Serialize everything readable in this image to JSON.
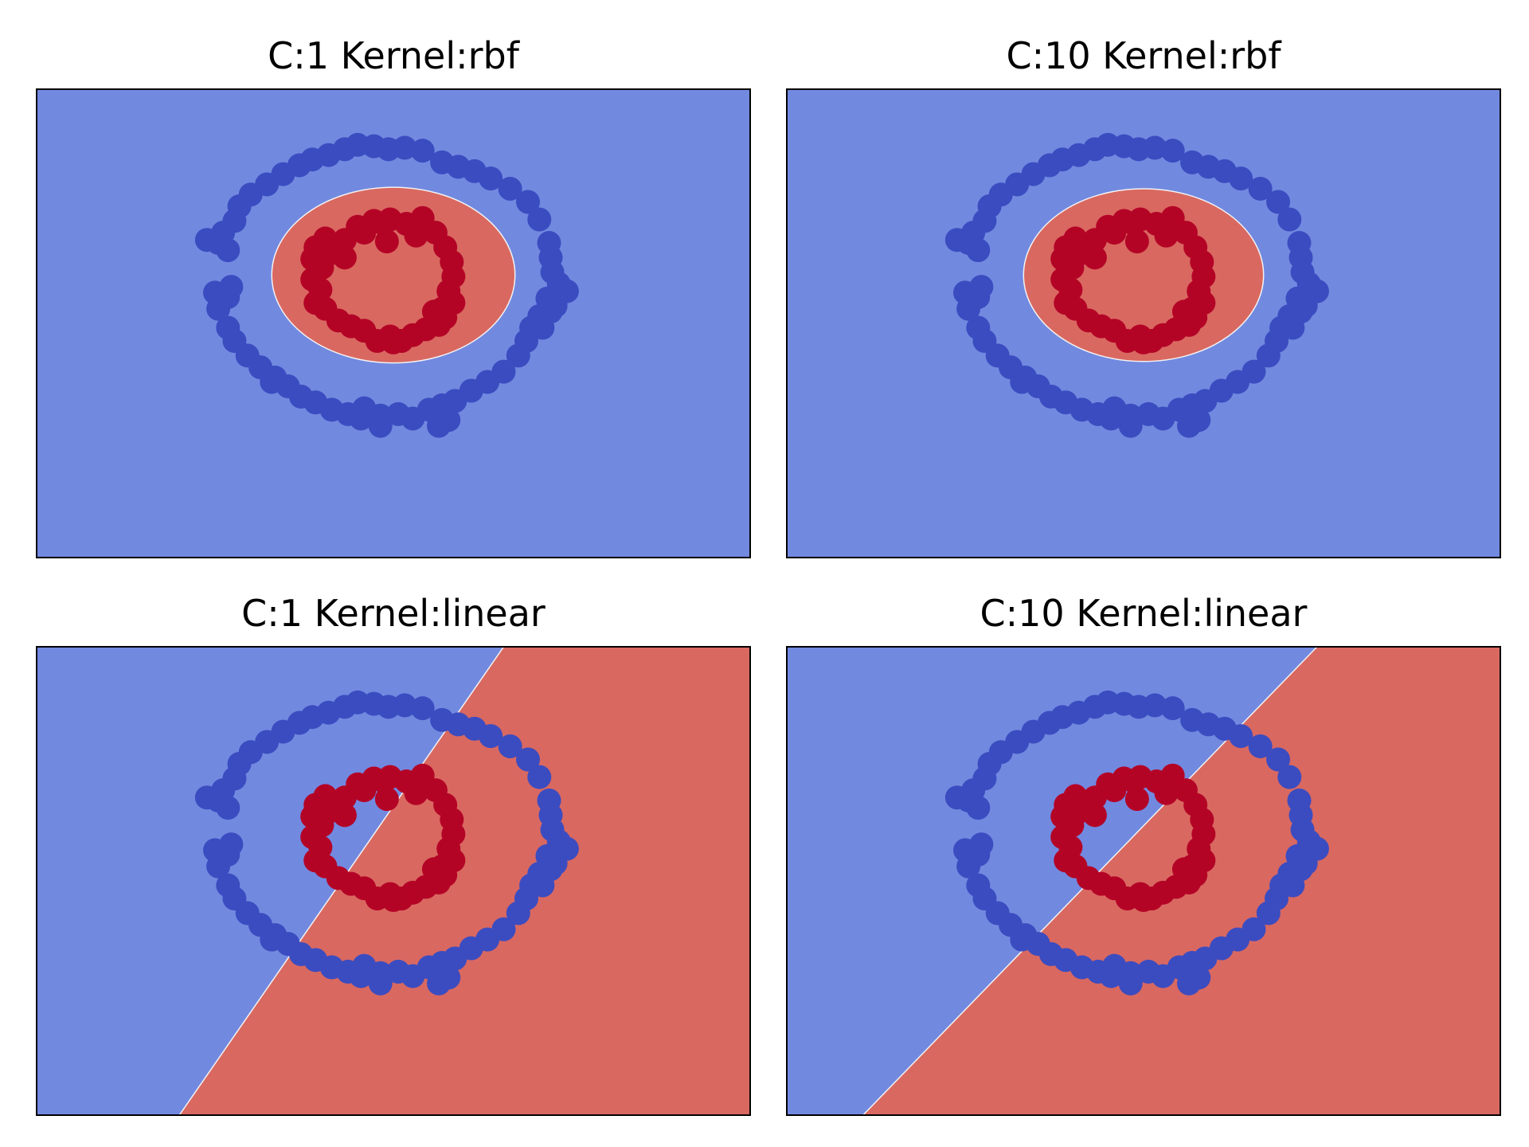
{
  "colors": {
    "region_outer": "#7289E0",
    "region_inner": "#D96861",
    "class_outer": "#3B4CC0",
    "class_inner": "#B40426",
    "frame": "#000000"
  },
  "chart_data": [
    {
      "type": "scatter",
      "title": "C:1 Kernel:rbf",
      "xlabel": "",
      "ylabel": "",
      "xlim": [
        -2.2,
        2.2
      ],
      "ylim": [
        -1.6,
        1.6
      ],
      "grid": false,
      "decision_boundary": {
        "shape": "ellipse",
        "center": [
          0,
          0.33
        ],
        "radius_x": 0.75,
        "radius_y": 0.6
      },
      "series": []
    },
    {
      "type": "scatter",
      "title": "C:10 Kernel:rbf",
      "xlabel": "",
      "ylabel": "",
      "xlim": [
        -2.2,
        2.2
      ],
      "ylim": [
        -1.6,
        1.6
      ],
      "grid": false,
      "decision_boundary": {
        "shape": "ellipse",
        "center": [
          0,
          0.33
        ],
        "radius_x": 0.74,
        "radius_y": 0.59
      },
      "series": []
    },
    {
      "type": "scatter",
      "title": "C:1 Kernel:linear",
      "xlabel": "",
      "ylabel": "",
      "xlim": [
        -2.2,
        2.2
      ],
      "ylim": [
        -1.6,
        1.6
      ],
      "grid": false,
      "decision_boundary": {
        "shape": "line",
        "p1": [
          -1.32,
          -1.6
        ],
        "p2": [
          0.68,
          1.6
        ]
      },
      "series": []
    },
    {
      "type": "scatter",
      "title": "C:10 Kernel:linear",
      "xlabel": "",
      "ylabel": "",
      "xlim": [
        -2.2,
        2.2
      ],
      "ylim": [
        -1.6,
        1.6
      ],
      "grid": false,
      "decision_boundary": {
        "shape": "line",
        "p1": [
          -1.73,
          -1.6
        ],
        "p2": [
          1.07,
          1.6
        ]
      },
      "series": []
    }
  ],
  "points": {
    "outer": [
      [
        -1.15,
        0.57
      ],
      [
        -1.08,
        0.55
      ],
      [
        -1.02,
        0.5
      ],
      [
        -1.05,
        0.62
      ],
      [
        -0.98,
        0.7
      ],
      [
        -0.95,
        0.8
      ],
      [
        -0.88,
        0.88
      ],
      [
        -0.78,
        0.95
      ],
      [
        -0.68,
        1.02
      ],
      [
        -0.58,
        1.08
      ],
      [
        -0.5,
        1.12
      ],
      [
        -0.4,
        1.15
      ],
      [
        -0.3,
        1.19
      ],
      [
        -0.22,
        1.22
      ],
      [
        -0.12,
        1.21
      ],
      [
        -0.03,
        1.19
      ],
      [
        0.07,
        1.2
      ],
      [
        0.18,
        1.18
      ],
      [
        0.3,
        1.1
      ],
      [
        0.4,
        1.07
      ],
      [
        0.5,
        1.04
      ],
      [
        0.6,
        0.99
      ],
      [
        0.72,
        0.92
      ],
      [
        0.83,
        0.83
      ],
      [
        0.9,
        0.71
      ],
      [
        0.96,
        0.55
      ],
      [
        0.97,
        0.45
      ],
      [
        0.98,
        0.35
      ],
      [
        1.02,
        0.27
      ],
      [
        1.07,
        0.22
      ],
      [
        0.95,
        0.17
      ],
      [
        0.97,
        0.08
      ],
      [
        0.9,
        0.05
      ],
      [
        0.85,
        -0.03
      ],
      [
        0.82,
        -0.12
      ],
      [
        0.77,
        -0.22
      ],
      [
        0.68,
        -0.33
      ],
      [
        0.58,
        -0.4
      ],
      [
        0.48,
        -0.46
      ],
      [
        0.38,
        -0.53
      ],
      [
        0.3,
        -0.56
      ],
      [
        0.22,
        -0.59
      ],
      [
        0.12,
        -0.65
      ],
      [
        0.03,
        -0.62
      ],
      [
        -0.08,
        -0.63
      ],
      [
        -0.18,
        -0.58
      ],
      [
        -0.28,
        -0.62
      ],
      [
        -0.38,
        -0.59
      ],
      [
        -0.48,
        -0.54
      ],
      [
        -0.57,
        -0.5
      ],
      [
        -0.65,
        -0.43
      ],
      [
        -0.73,
        -0.37
      ],
      [
        -0.82,
        -0.3
      ],
      [
        -0.9,
        -0.22
      ],
      [
        -0.98,
        -0.12
      ],
      [
        -1.02,
        -0.03
      ],
      [
        -1.08,
        0.1
      ],
      [
        -1.02,
        0.18
      ],
      [
        -1.0,
        0.25
      ],
      [
        -1.1,
        0.21
      ],
      [
        -0.75,
        -0.4
      ],
      [
        0.34,
        -0.66
      ],
      [
        0.28,
        -0.7
      ],
      [
        -0.08,
        -0.7
      ],
      [
        -0.2,
        -0.65
      ],
      [
        0.92,
        -0.03
      ],
      [
        1.0,
        0.12
      ]
    ],
    "inner": [
      [
        -0.5,
        0.44
      ],
      [
        -0.48,
        0.52
      ],
      [
        -0.42,
        0.58
      ],
      [
        -0.38,
        0.48
      ],
      [
        -0.3,
        0.57
      ],
      [
        -0.22,
        0.66
      ],
      [
        -0.12,
        0.7
      ],
      [
        -0.02,
        0.71
      ],
      [
        0.08,
        0.68
      ],
      [
        0.18,
        0.72
      ],
      [
        0.26,
        0.62
      ],
      [
        0.32,
        0.52
      ],
      [
        0.36,
        0.42
      ],
      [
        0.37,
        0.32
      ],
      [
        0.34,
        0.22
      ],
      [
        0.37,
        0.14
      ],
      [
        0.3,
        0.1
      ],
      [
        0.32,
        0.04
      ],
      [
        0.28,
        -0.01
      ],
      [
        0.2,
        -0.04
      ],
      [
        0.12,
        -0.08
      ],
      [
        0.05,
        -0.12
      ],
      [
        -0.02,
        -0.09
      ],
      [
        -0.1,
        -0.12
      ],
      [
        -0.18,
        -0.05
      ],
      [
        -0.26,
        -0.02
      ],
      [
        -0.34,
        0.02
      ],
      [
        -0.42,
        0.1
      ],
      [
        -0.48,
        0.14
      ],
      [
        -0.45,
        0.23
      ],
      [
        -0.5,
        0.3
      ],
      [
        -0.44,
        0.38
      ],
      [
        -0.04,
        0.56
      ],
      [
        0.0,
        -0.13
      ],
      [
        0.14,
        0.6
      ],
      [
        -0.18,
        0.62
      ],
      [
        0.25,
        0.08
      ],
      [
        -0.06,
        0.68
      ],
      [
        -0.3,
        0.45
      ]
    ]
  }
}
